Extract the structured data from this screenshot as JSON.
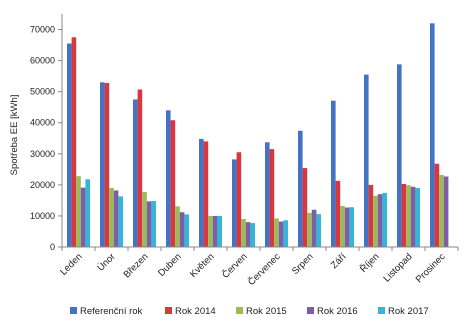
{
  "chart_data": {
    "type": "bar",
    "ylabel": "Spotřeba EE [kWh]",
    "ylim": [
      0,
      75000
    ],
    "yticks": [
      0,
      10000,
      20000,
      30000,
      40000,
      50000,
      60000,
      70000
    ],
    "grid": false,
    "legend_position": "bottom",
    "categories": [
      "Leden",
      "Únor",
      "Březen",
      "Duben",
      "Květen",
      "Červen",
      "Červenec",
      "Srpen",
      "Září",
      "Říjen",
      "Listopad",
      "Prosinec"
    ],
    "series": [
      {
        "name": "Referenční rok",
        "color": "#4472C4",
        "values": [
          65500,
          53000,
          47500,
          44000,
          34800,
          28200,
          33700,
          37400,
          47100,
          55500,
          58800,
          72000
        ]
      },
      {
        "name": "Rok 2014",
        "color": "#D9363E",
        "values": [
          67500,
          52800,
          50700,
          40800,
          34000,
          30500,
          31500,
          25400,
          21300,
          20000,
          20300,
          26800
        ]
      },
      {
        "name": "Rok 2015",
        "color": "#9BBB59",
        "values": [
          22800,
          19000,
          17700,
          13100,
          10000,
          9000,
          9200,
          11000,
          13200,
          16500,
          19900,
          23200
        ]
      },
      {
        "name": "Rok 2016",
        "color": "#7E5EA6",
        "values": [
          19100,
          18200,
          14700,
          11200,
          10000,
          8000,
          8200,
          12000,
          12700,
          17000,
          19400,
          22700
        ]
      },
      {
        "name": "Rok 2017",
        "color": "#33B6D8",
        "values": [
          21800,
          16300,
          14800,
          10500,
          10000,
          7700,
          8600,
          10600,
          12800,
          17400,
          19000,
          null
        ]
      }
    ]
  }
}
